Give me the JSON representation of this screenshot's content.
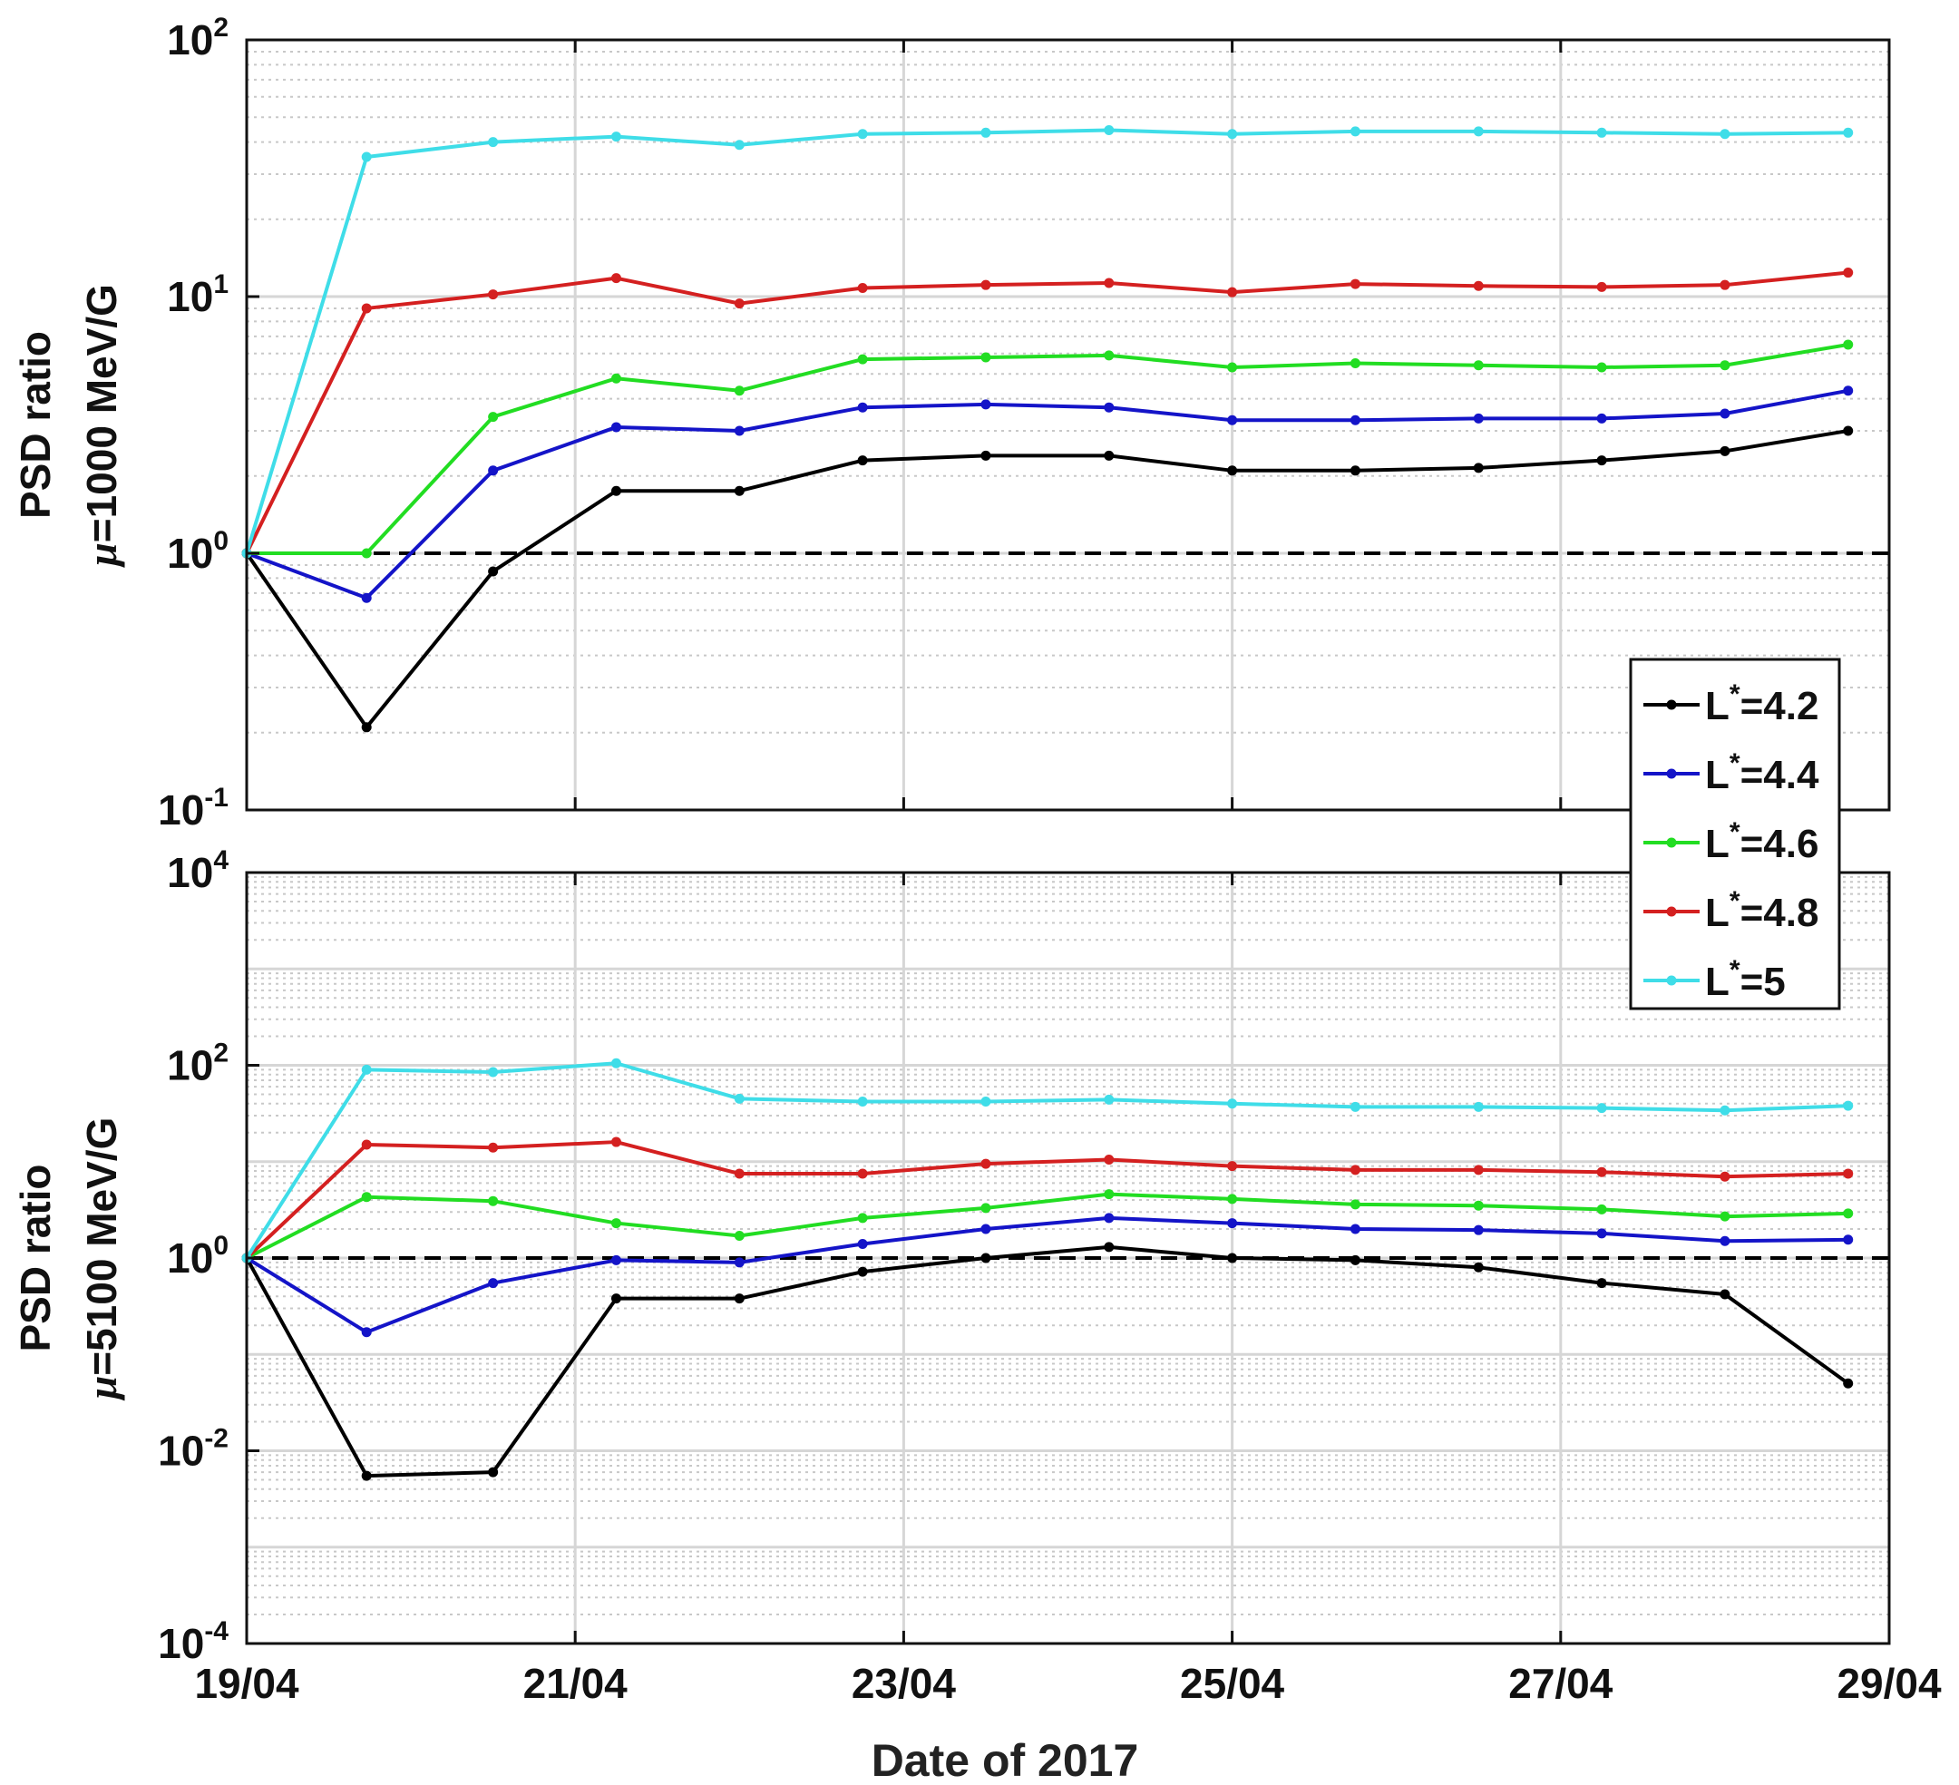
{
  "chart_data": [
    {
      "type": "line",
      "ylabel_line1": "PSD ratio",
      "ylabel_line2_sym": "μ",
      "ylabel_line2_rest": "=1000 MeV/G",
      "yscale": "log",
      "ylim": [
        0.1,
        100
      ],
      "yticks": [
        {
          "value": 0.1,
          "base": "10",
          "exp": "-1"
        },
        {
          "value": 1,
          "base": "10",
          "exp": "0"
        },
        {
          "value": 10,
          "base": "10",
          "exp": "1"
        },
        {
          "value": 100,
          "base": "10",
          "exp": "2"
        }
      ],
      "reference_line": 1,
      "grid": true,
      "x": [
        0,
        0.73,
        1.5,
        2.25,
        3.0,
        3.75,
        4.5,
        5.25,
        6.0,
        6.75,
        7.5,
        8.25,
        9.0,
        9.75
      ],
      "series": [
        {
          "name": "L*=4.2",
          "color": "#000000",
          "values": [
            1.0,
            0.21,
            0.85,
            1.75,
            1.75,
            2.3,
            2.4,
            2.4,
            2.1,
            2.1,
            2.15,
            2.3,
            2.5,
            3.0
          ]
        },
        {
          "name": "L*=4.4",
          "color": "#1414c8",
          "values": [
            1.0,
            0.67,
            2.1,
            3.1,
            3.0,
            3.7,
            3.8,
            3.7,
            3.3,
            3.3,
            3.35,
            3.35,
            3.5,
            4.3
          ]
        },
        {
          "name": "L*=4.6",
          "color": "#22dd22",
          "values": [
            1.0,
            1.0,
            3.4,
            4.8,
            4.3,
            5.7,
            5.8,
            5.9,
            5.3,
            5.5,
            5.4,
            5.3,
            5.4,
            6.5
          ]
        },
        {
          "name": "L*=4.8",
          "color": "#d42020",
          "values": [
            1.0,
            9.0,
            10.2,
            11.8,
            9.4,
            10.8,
            11.1,
            11.3,
            10.4,
            11.2,
            11.0,
            10.9,
            11.1,
            12.4
          ]
        },
        {
          "name": "L*=5",
          "color": "#3fdde8",
          "values": [
            1.0,
            35.0,
            40.0,
            42.0,
            39.0,
            43.0,
            43.5,
            44.5,
            43.0,
            44.0,
            44.0,
            43.5,
            43.0,
            43.5
          ]
        }
      ]
    },
    {
      "type": "line",
      "ylabel_line1": "PSD ratio",
      "ylabel_line2_sym": "μ",
      "ylabel_line2_rest": "=5100 MeV/G",
      "yscale": "log",
      "ylim": [
        0.0001,
        10000
      ],
      "yticks": [
        {
          "value": 0.0001,
          "base": "10",
          "exp": "-4"
        },
        {
          "value": 0.01,
          "base": "10",
          "exp": "-2"
        },
        {
          "value": 1,
          "base": "10",
          "exp": "0"
        },
        {
          "value": 100,
          "base": "10",
          "exp": "2"
        },
        {
          "value": 10000,
          "base": "10",
          "exp": "4"
        }
      ],
      "reference_line": 1,
      "grid": true,
      "x": [
        0,
        0.73,
        1.5,
        2.25,
        3.0,
        3.75,
        4.5,
        5.25,
        6.0,
        6.75,
        7.5,
        8.25,
        9.0,
        9.75
      ],
      "series": [
        {
          "name": "L*=4.2",
          "color": "#000000",
          "values": [
            1.0,
            0.0055,
            0.006,
            0.38,
            0.38,
            0.72,
            1.0,
            1.3,
            1.0,
            0.95,
            0.8,
            0.55,
            0.42,
            0.05
          ]
        },
        {
          "name": "L*=4.4",
          "color": "#1414c8",
          "values": [
            1.0,
            0.17,
            0.55,
            0.95,
            0.9,
            1.4,
            2.0,
            2.6,
            2.3,
            2.0,
            1.95,
            1.8,
            1.5,
            1.55
          ]
        },
        {
          "name": "L*=4.6",
          "color": "#22dd22",
          "values": [
            1.0,
            4.3,
            3.9,
            2.3,
            1.7,
            2.6,
            3.3,
            4.6,
            4.1,
            3.6,
            3.5,
            3.2,
            2.7,
            2.9
          ]
        },
        {
          "name": "L*=4.8",
          "color": "#d42020",
          "values": [
            1.0,
            15.0,
            14.0,
            16.0,
            7.5,
            7.5,
            9.5,
            10.5,
            9.0,
            8.2,
            8.2,
            7.8,
            7.0,
            7.5
          ]
        },
        {
          "name": "L*=5",
          "color": "#3fdde8",
          "values": [
            1.0,
            90.0,
            85.0,
            105.0,
            45.0,
            42.0,
            42.0,
            44.0,
            40.0,
            37.0,
            37.0,
            36.0,
            34.0,
            38.0
          ]
        }
      ]
    }
  ],
  "shared": {
    "xlabel": "Date of 2017",
    "xlim": [
      0,
      10
    ],
    "xticks": [
      {
        "value": 0,
        "label": "19/04"
      },
      {
        "value": 2,
        "label": "21/04"
      },
      {
        "value": 4,
        "label": "23/04"
      },
      {
        "value": 6,
        "label": "25/04"
      },
      {
        "value": 8,
        "label": "27/04"
      },
      {
        "value": 10,
        "label": "29/04"
      }
    ],
    "legend": {
      "placement": "right, spanning both panels",
      "entries": [
        {
          "prefix": "L",
          "star": "*",
          "rest": "=4.2",
          "color": "#000000"
        },
        {
          "prefix": "L",
          "star": "*",
          "rest": "=4.4",
          "color": "#1414c8"
        },
        {
          "prefix": "L",
          "star": "*",
          "rest": "=4.6",
          "color": "#22dd22"
        },
        {
          "prefix": "L",
          "star": "*",
          "rest": "=4.8",
          "color": "#d42020"
        },
        {
          "prefix": "L",
          "star": "*",
          "rest": "=5",
          "color": "#3fdde8"
        }
      ]
    }
  }
}
